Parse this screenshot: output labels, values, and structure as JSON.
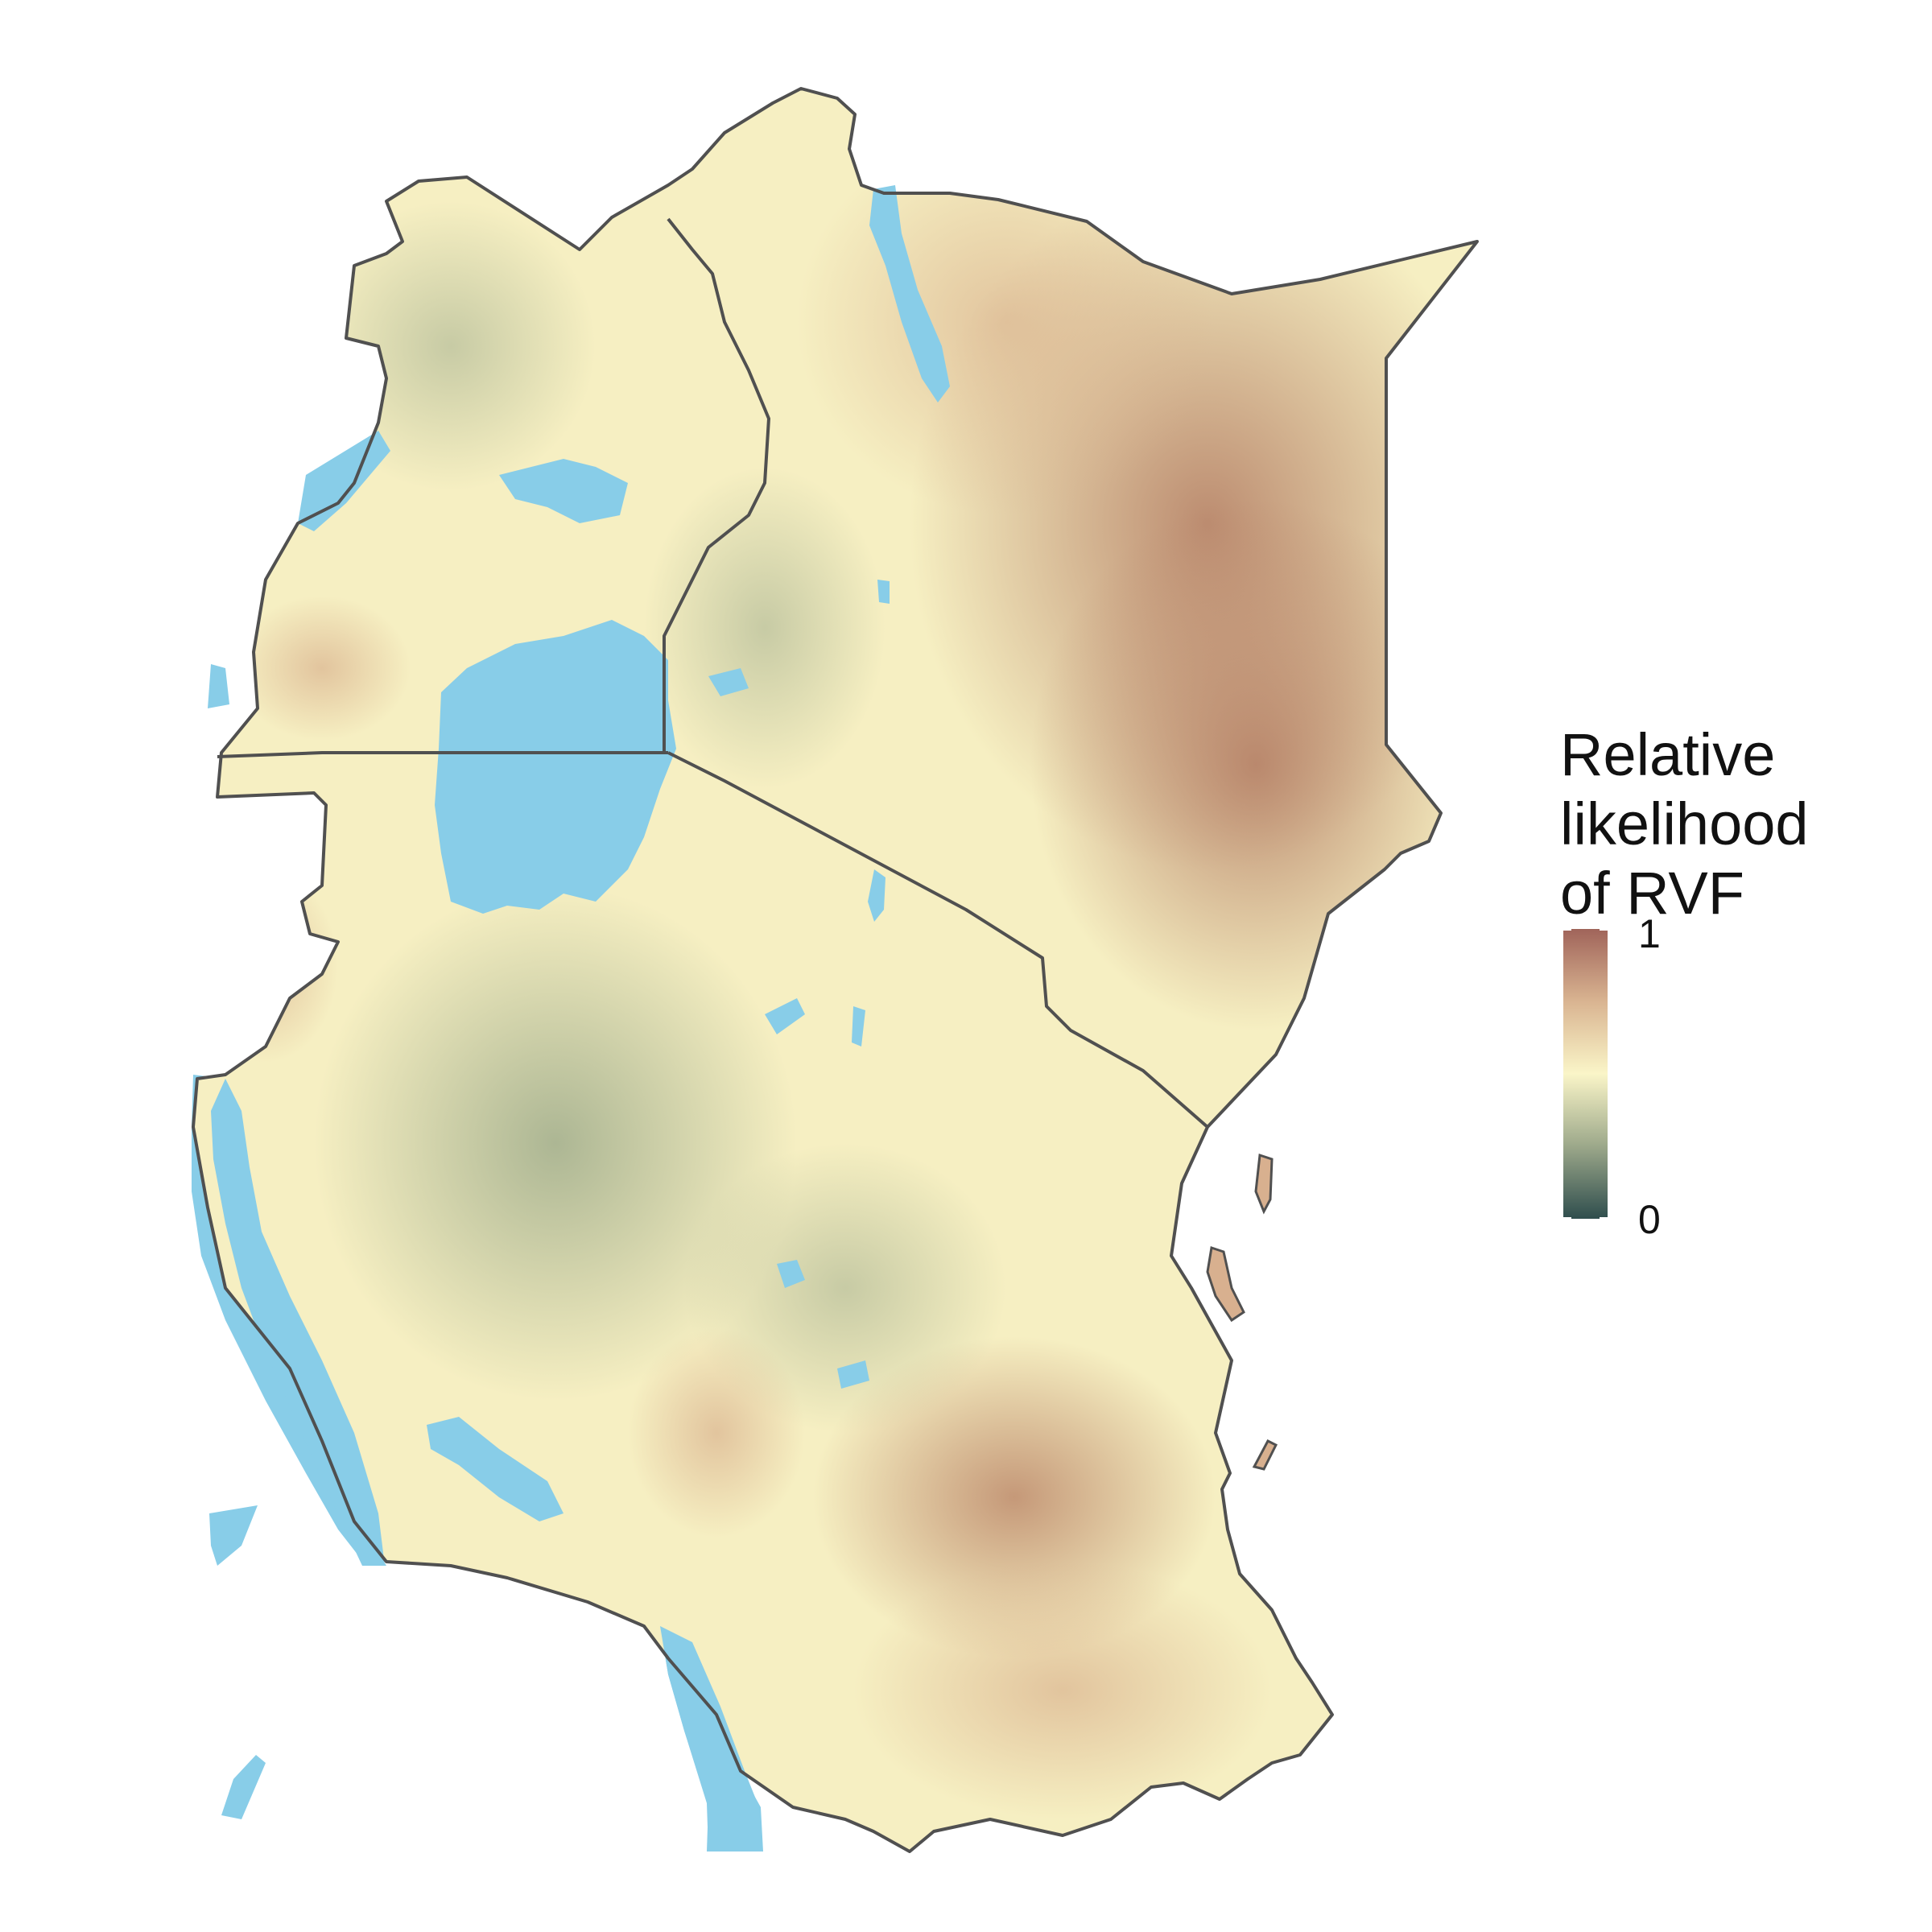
{
  "legend": {
    "title_lines": [
      "Relative",
      "likelihood",
      "of RVF"
    ],
    "max_label": "1",
    "min_label": "0",
    "scale_min": 0,
    "scale_max": 1,
    "gradient_colors": [
      "#a0645a",
      "#d9b491",
      "#faf5c8",
      "#9ca88a",
      "#2f4e4d"
    ]
  },
  "map": {
    "water_color": "#88cde8",
    "border_color": "#505050",
    "background_color": "#ffffff"
  }
}
